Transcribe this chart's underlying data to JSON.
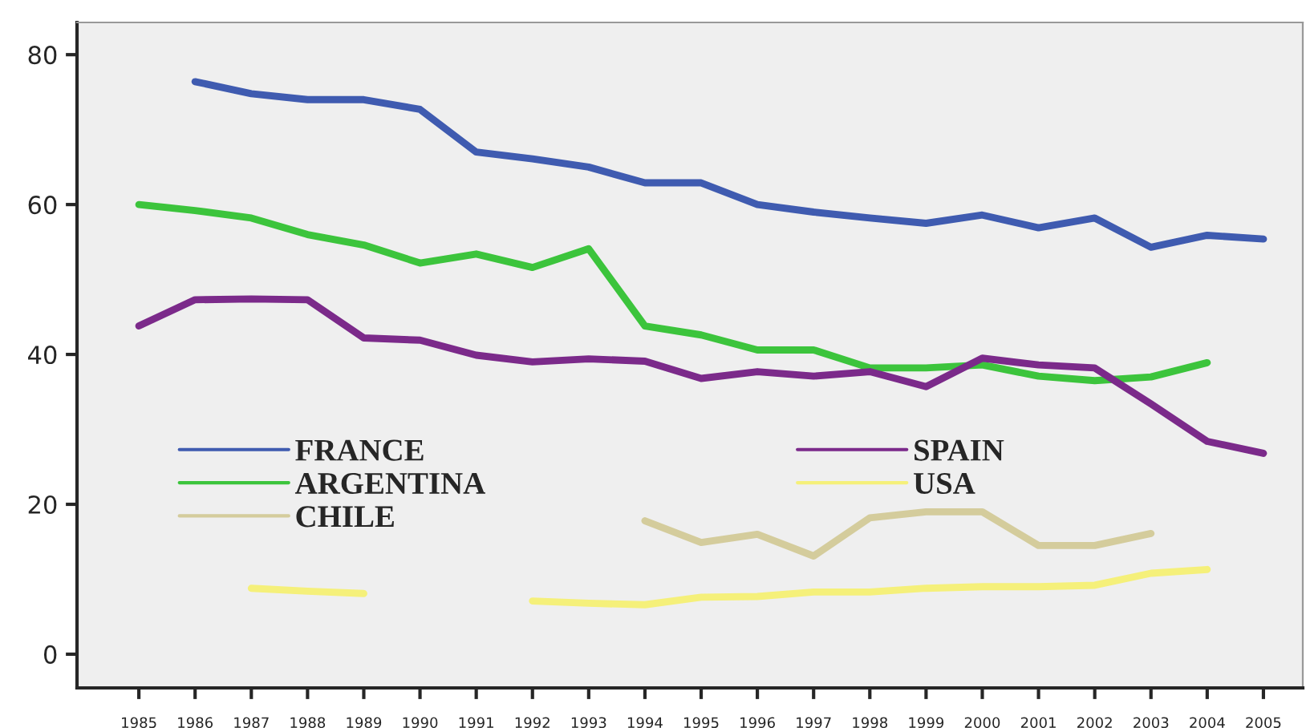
{
  "chart_data": {
    "type": "line",
    "x": [
      1985,
      1986,
      1987,
      1988,
      1989,
      1990,
      1991,
      1992,
      1993,
      1994,
      1995,
      1996,
      1997,
      1998,
      1999,
      2000,
      2001,
      2002,
      2003,
      2004,
      2005
    ],
    "series": [
      {
        "name": "FRANCE",
        "color": "#3f5bb0",
        "values": [
          null,
          76.4,
          74.8,
          74,
          74,
          72.7,
          67,
          66.1,
          65,
          62.9,
          62.9,
          60,
          59,
          58.2,
          57.5,
          58.6,
          56.9,
          58.2,
          54.3,
          55.9,
          55.4
        ]
      },
      {
        "name": "ARGENTINA",
        "color": "#3cc43c",
        "values": [
          60,
          59.2,
          58.2,
          56,
          54.6,
          52.2,
          53.4,
          51.6,
          54.1,
          43.8,
          42.6,
          40.6,
          40.6,
          38.2,
          38.2,
          38.6,
          37.1,
          36.5,
          37,
          38.9,
          null
        ]
      },
      {
        "name": "CHILE",
        "color": "#d4cc9c",
        "values": [
          null,
          null,
          null,
          null,
          null,
          null,
          null,
          null,
          null,
          17.8,
          14.9,
          16,
          13.1,
          18.2,
          19,
          19,
          14.5,
          14.5,
          16.1,
          null,
          null
        ]
      },
      {
        "name": "SPAIN",
        "color": "#7b2a8a",
        "values": [
          43.8,
          47.3,
          47.4,
          47.3,
          42.2,
          41.9,
          39.9,
          39,
          39.4,
          39.1,
          36.8,
          37.7,
          37.1,
          37.7,
          35.7,
          39.5,
          38.6,
          38.2,
          33.4,
          28.4,
          26.8
        ]
      },
      {
        "name": "USA",
        "color": "#f5f07a",
        "values": [
          null,
          null,
          8.8,
          8.4,
          8.1,
          null,
          null,
          7.1,
          6.8,
          6.6,
          7.6,
          7.7,
          8.3,
          8.3,
          8.8,
          9,
          9,
          9.2,
          10.8,
          11.3,
          null
        ]
      }
    ],
    "xlim": [
      1983.9,
      2005.7
    ],
    "xticks": [
      1985,
      1986,
      1987,
      1988,
      1989,
      1990,
      1991,
      1992,
      1993,
      1994,
      1995,
      1996,
      1997,
      1998,
      1999,
      2000,
      2001,
      2002,
      2003,
      2004,
      2005
    ],
    "ylim": [
      -4.5,
      84.3
    ],
    "yticks": [
      0,
      20,
      40,
      60,
      80
    ],
    "grid": false,
    "legend": "bottom",
    "line_style": "solid",
    "marker": "none"
  }
}
